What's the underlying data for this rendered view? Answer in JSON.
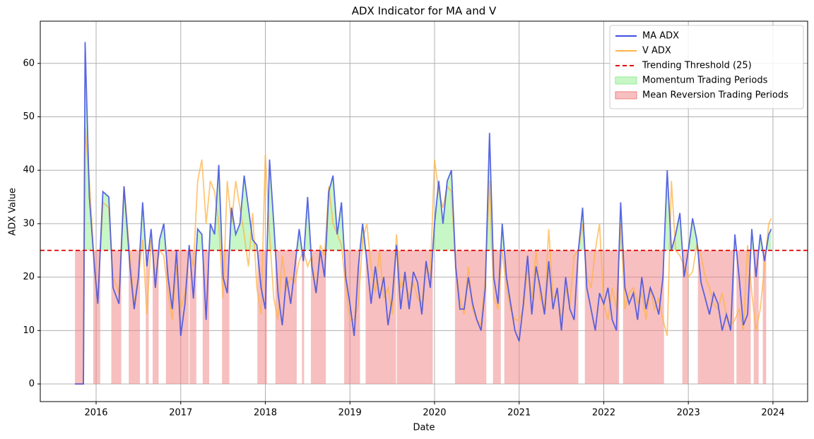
{
  "chart_data": {
    "type": "line",
    "title": "ADX Indicator for MA and V",
    "xlabel": "Date",
    "ylabel": "ADX Value",
    "x": [
      2015.75,
      2015.85,
      2015.87,
      2015.92,
      2015.98,
      2016.02,
      2016.08,
      2016.15,
      2016.2,
      2016.27,
      2016.33,
      2016.4,
      2016.45,
      2016.5,
      2016.55,
      2016.6,
      2016.65,
      2016.7,
      2016.75,
      2016.8,
      2016.85,
      2016.9,
      2016.95,
      2017.0,
      2017.05,
      2017.1,
      2017.15,
      2017.2,
      2017.25,
      2017.3,
      2017.35,
      2017.4,
      2017.45,
      2017.5,
      2017.55,
      2017.6,
      2017.65,
      2017.7,
      2017.75,
      2017.8,
      2017.85,
      2017.9,
      2017.95,
      2018.0,
      2018.05,
      2018.1,
      2018.15,
      2018.2,
      2018.25,
      2018.3,
      2018.35,
      2018.4,
      2018.45,
      2018.5,
      2018.55,
      2018.6,
      2018.65,
      2018.7,
      2018.75,
      2018.8,
      2018.85,
      2018.9,
      2018.95,
      2019.0,
      2019.05,
      2019.1,
      2019.15,
      2019.2,
      2019.25,
      2019.3,
      2019.35,
      2019.4,
      2019.45,
      2019.5,
      2019.55,
      2019.6,
      2019.65,
      2019.7,
      2019.75,
      2019.8,
      2019.85,
      2019.9,
      2019.95,
      2020.0,
      2020.05,
      2020.1,
      2020.15,
      2020.2,
      2020.25,
      2020.3,
      2020.35,
      2020.4,
      2020.45,
      2020.5,
      2020.55,
      2020.6,
      2020.65,
      2020.7,
      2020.75,
      2020.8,
      2020.85,
      2020.9,
      2020.95,
      2021.0,
      2021.05,
      2021.1,
      2021.15,
      2021.2,
      2021.25,
      2021.3,
      2021.35,
      2021.4,
      2021.45,
      2021.5,
      2021.55,
      2021.6,
      2021.65,
      2021.7,
      2021.75,
      2021.8,
      2021.85,
      2021.9,
      2021.95,
      2022.0,
      2022.05,
      2022.1,
      2022.15,
      2022.2,
      2022.25,
      2022.3,
      2022.35,
      2022.4,
      2022.45,
      2022.5,
      2022.55,
      2022.6,
      2022.65,
      2022.7,
      2022.75,
      2022.8,
      2022.85,
      2022.9,
      2022.95,
      2023.0,
      2023.05,
      2023.1,
      2023.15,
      2023.2,
      2023.25,
      2023.3,
      2023.35,
      2023.4,
      2023.45,
      2023.5,
      2023.55,
      2023.6,
      2023.65,
      2023.7,
      2023.75,
      2023.8,
      2023.85,
      2023.9,
      2023.95,
      2023.98
    ],
    "series": [
      {
        "name": "MA ADX",
        "color": "#3f4fe0",
        "values": [
          0,
          0,
          64,
          35,
          22,
          15,
          36,
          35,
          18,
          15,
          37,
          22,
          14,
          20,
          34,
          22,
          29,
          18,
          27,
          30,
          20,
          14,
          25,
          9,
          15,
          26,
          16,
          29,
          28,
          12,
          30,
          28,
          41,
          20,
          17,
          33,
          28,
          30,
          39,
          33,
          27,
          26,
          18,
          14,
          42,
          30,
          17,
          11,
          20,
          15,
          22,
          29,
          23,
          35,
          22,
          17,
          25,
          20,
          36,
          39,
          28,
          34,
          20,
          15,
          9,
          22,
          30,
          23,
          15,
          22,
          16,
          20,
          11,
          16,
          26,
          14,
          21,
          14,
          21,
          19,
          13,
          23,
          18,
          30,
          38,
          30,
          38,
          40,
          22,
          14,
          14,
          20,
          15,
          12,
          10,
          18,
          47,
          20,
          15,
          30,
          20,
          15,
          10,
          8,
          15,
          24,
          13,
          22,
          18,
          13,
          23,
          14,
          18,
          10,
          20,
          14,
          12,
          25,
          33,
          18,
          14,
          10,
          17,
          15,
          18,
          12,
          10,
          34,
          18,
          15,
          17,
          12,
          20,
          14,
          18,
          16,
          13,
          20,
          40,
          25,
          28,
          32,
          20,
          25,
          31,
          27,
          19,
          16,
          13,
          17,
          15,
          10,
          13,
          10,
          28,
          20,
          11,
          13,
          29,
          20,
          28,
          23,
          28,
          29
        ]
      },
      {
        "name": "V ADX",
        "color": "#ffb347",
        "values": [
          0,
          0,
          48,
          38,
          22,
          16,
          34,
          33,
          20,
          17,
          37,
          24,
          15,
          20,
          27,
          13,
          27,
          20,
          25,
          24,
          17,
          12,
          22,
          14,
          17,
          25,
          22,
          38,
          42,
          30,
          38,
          36,
          30,
          16,
          38,
          30,
          38,
          33,
          28,
          22,
          32,
          18,
          13,
          43,
          28,
          16,
          12,
          24,
          18,
          20,
          19,
          23,
          25,
          22,
          24,
          17,
          26,
          24,
          37,
          30,
          28,
          26,
          18,
          12,
          12,
          15,
          27,
          30,
          22,
          17,
          25,
          16,
          18,
          13,
          28,
          18,
          20,
          16,
          19,
          16,
          15,
          22,
          20,
          42,
          36,
          33,
          37,
          36,
          22,
          16,
          13,
          22,
          14,
          12,
          11,
          20,
          38,
          16,
          14,
          25,
          18,
          14,
          12,
          12,
          14,
          22,
          16,
          25,
          16,
          14,
          29,
          16,
          17,
          12,
          18,
          15,
          24,
          25,
          30,
          20,
          18,
          25,
          30,
          15,
          12,
          18,
          14,
          30,
          14,
          17,
          18,
          15,
          17,
          12,
          18,
          14,
          16,
          12,
          9,
          38,
          25,
          24,
          22,
          20,
          21,
          26,
          24,
          20,
          18,
          15,
          14,
          17,
          13,
          11,
          12,
          14,
          10,
          26,
          17,
          10,
          14,
          22,
          30,
          31
        ]
      }
    ],
    "threshold": {
      "value": 25,
      "name": "Trending Threshold (25)",
      "color": "#e00000"
    },
    "fills": [
      {
        "name": "Momentum Trading Periods",
        "color": "#90ee90"
      },
      {
        "name": "Mean Reversion Trading Periods",
        "color": "#f08080"
      }
    ],
    "xlim": [
      2015.34,
      2024.41
    ],
    "xticks": [
      2016,
      2017,
      2018,
      2019,
      2020,
      2021,
      2022,
      2023,
      2024
    ],
    "ylim": [
      -3.3,
      67.9
    ],
    "yticks": [
      0,
      10,
      20,
      30,
      40,
      50,
      60
    ],
    "grid": true,
    "legend": "upper right"
  }
}
